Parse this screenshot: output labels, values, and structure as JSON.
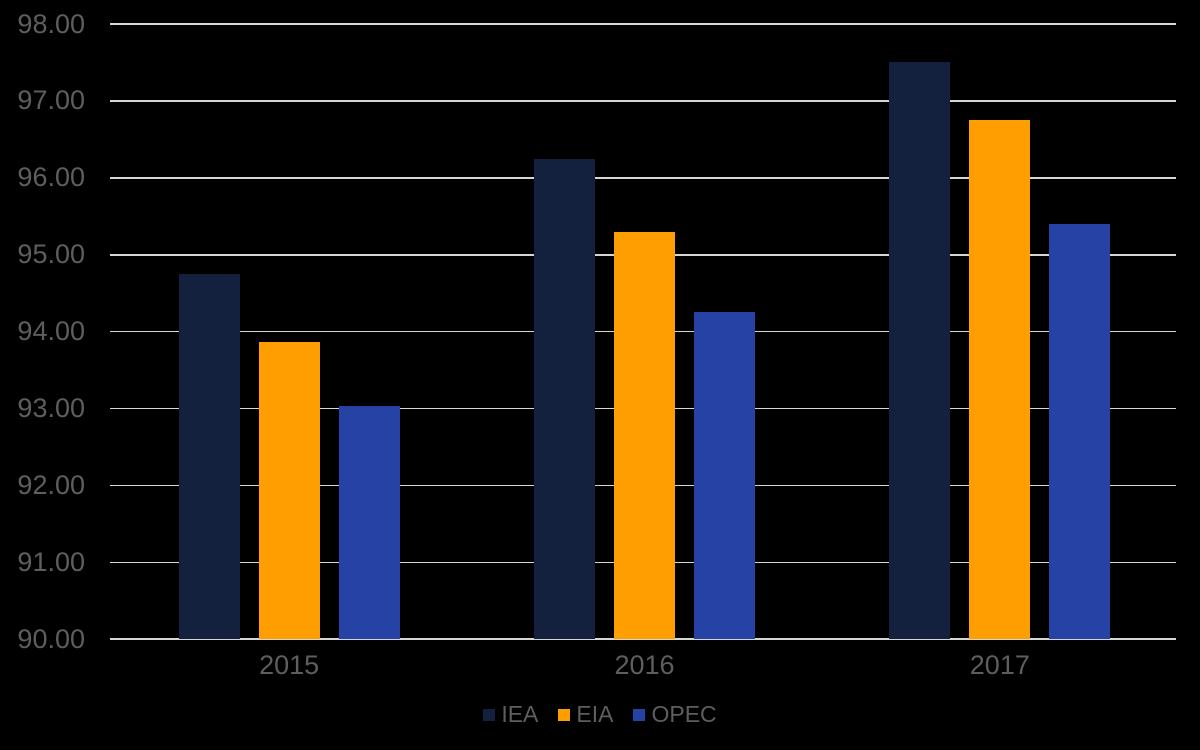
{
  "chart_data": {
    "type": "bar",
    "title": "",
    "xlabel": "",
    "ylabel": "",
    "categories": [
      "2015",
      "2016",
      "2017"
    ],
    "series": [
      {
        "name": "IEA",
        "color": "#13203E",
        "values": [
          94.75,
          96.25,
          97.5
        ]
      },
      {
        "name": "EIA",
        "color": "#FF9E00",
        "values": [
          93.86,
          95.3,
          96.75
        ]
      },
      {
        "name": "OPEC",
        "color": "#2542A4",
        "values": [
          93.03,
          94.25,
          95.4
        ]
      }
    ],
    "ylim": [
      90,
      98
    ],
    "ytick_step": 1,
    "ytick_decimals": 2,
    "grid": true,
    "legend_position": "bottom",
    "colors": {
      "background": "#000000",
      "gridline": "#D6D6D6",
      "axis_line": "#D6D6D6",
      "label_text": "#5E5E5E"
    }
  }
}
